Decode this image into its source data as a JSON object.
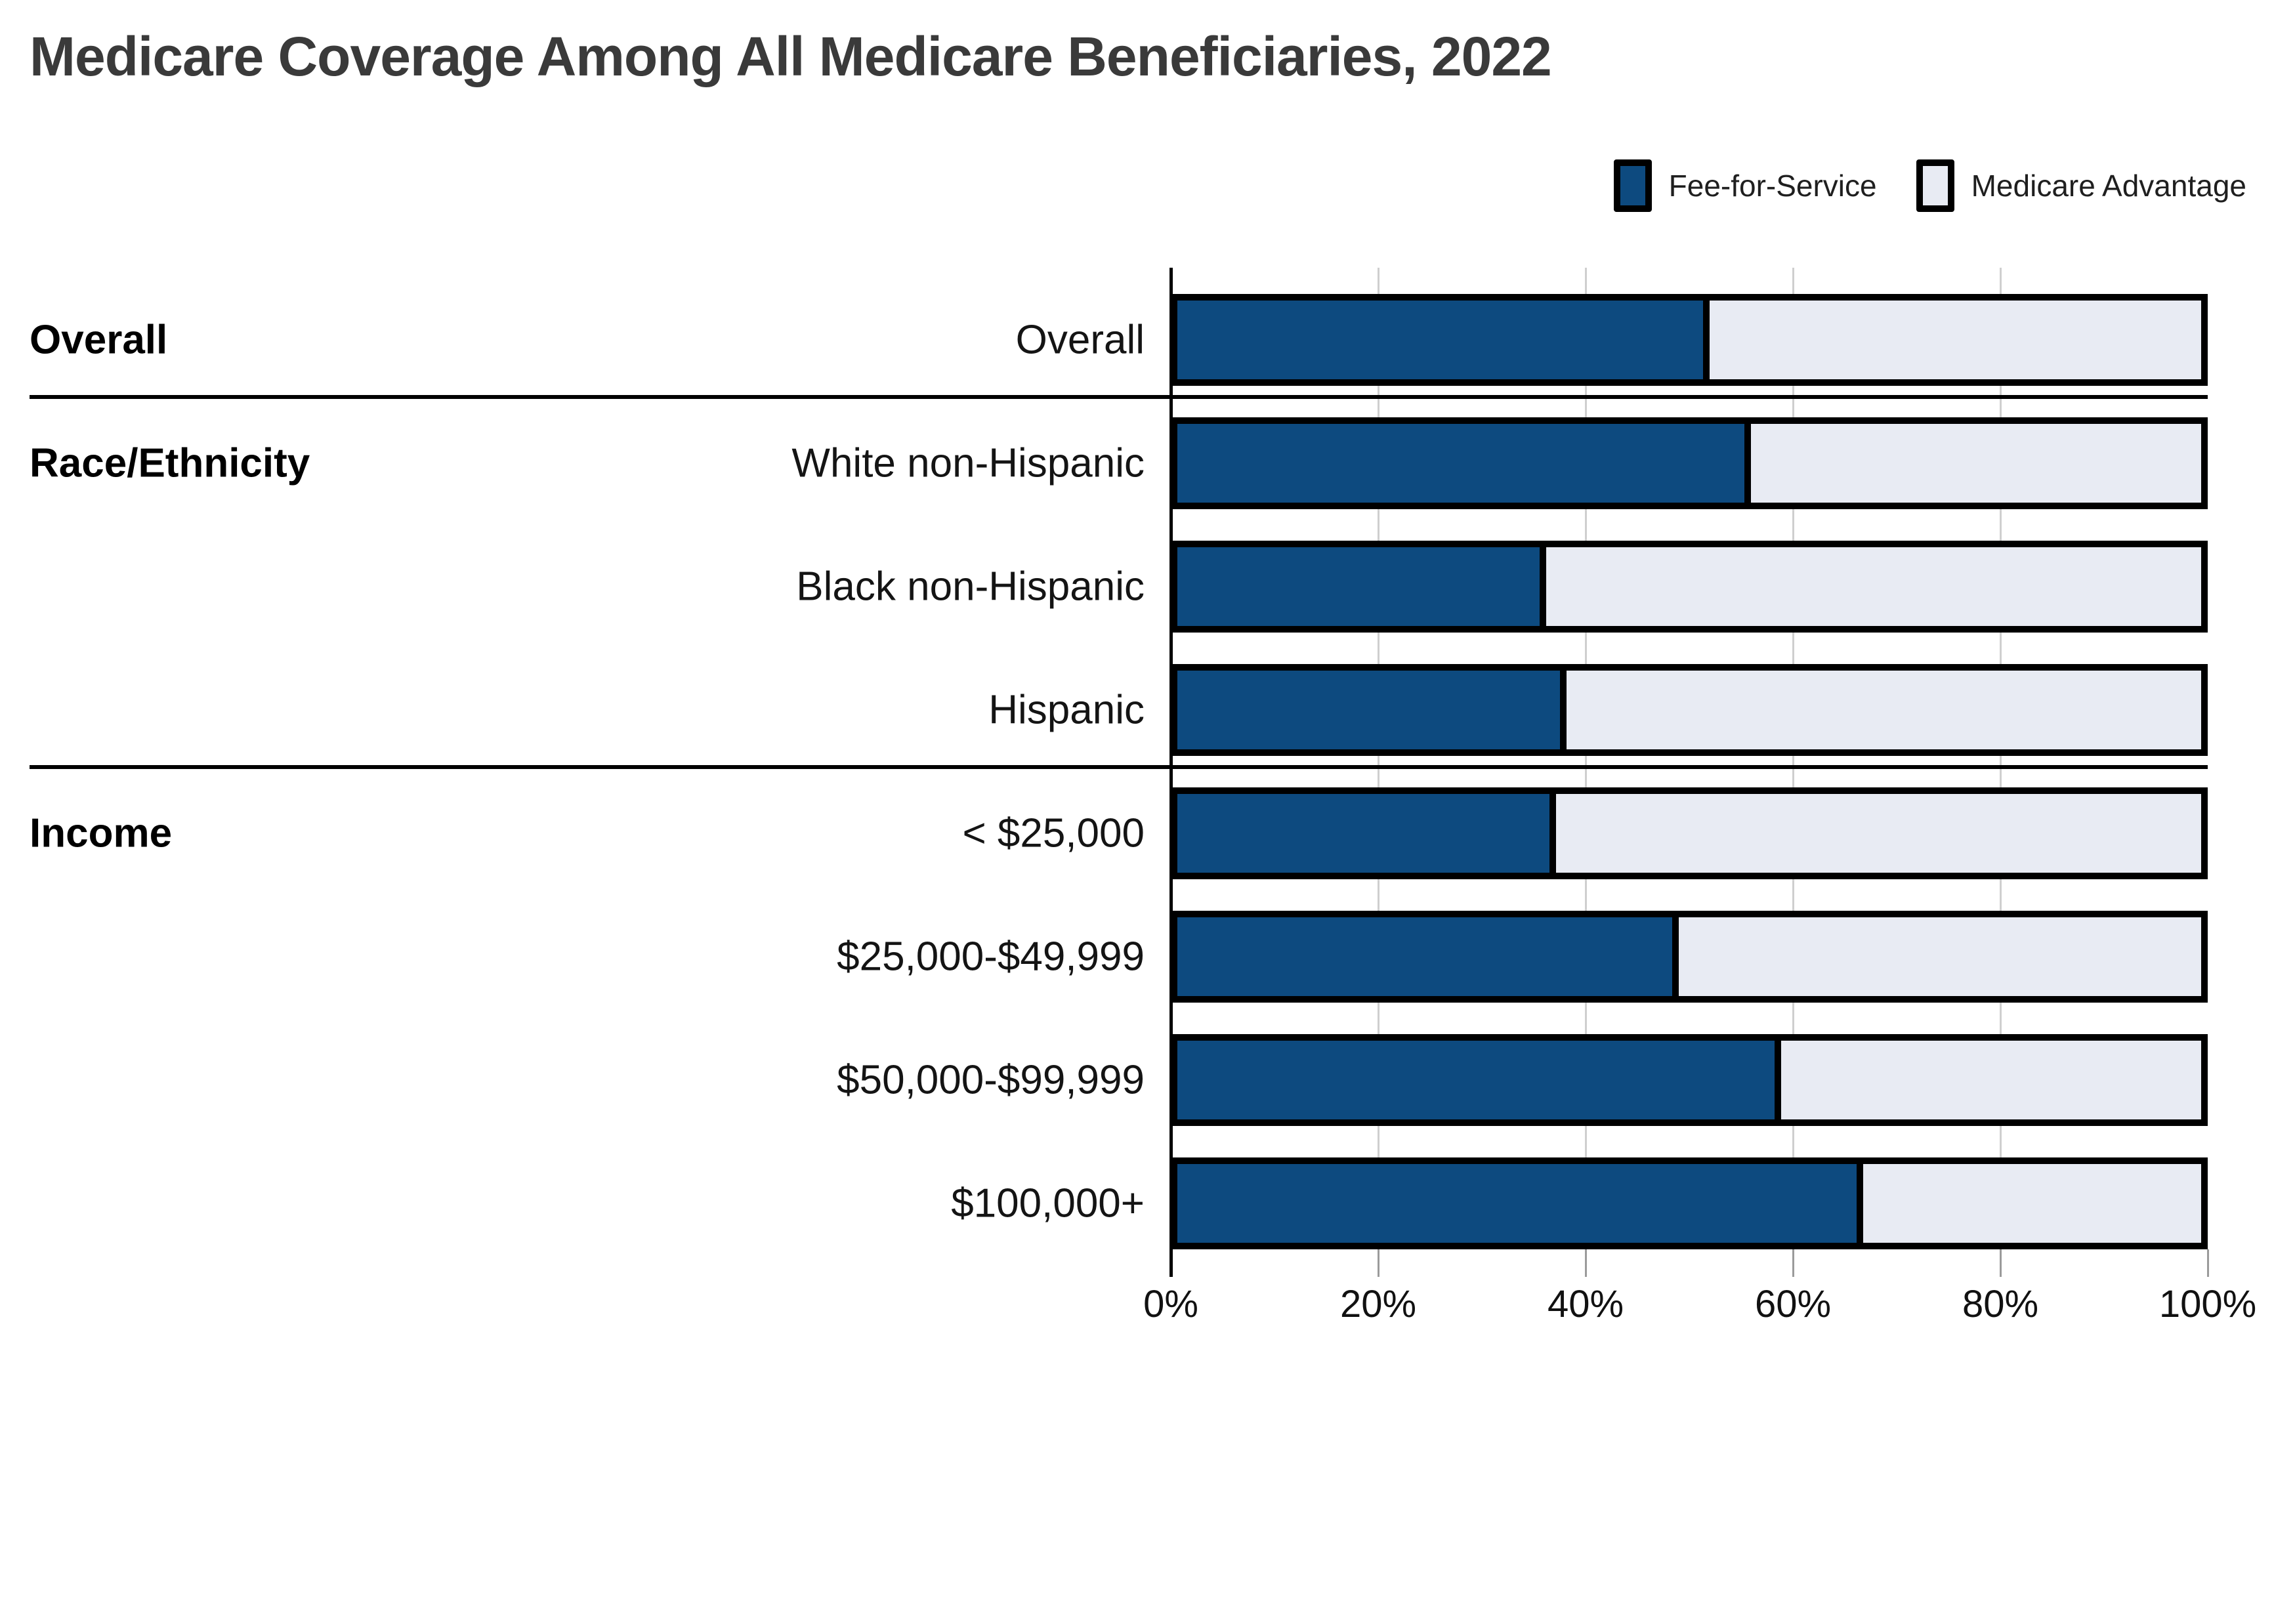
{
  "title": "Medicare Coverage Among All Medicare Beneficiaries, 2022",
  "legend": {
    "items": [
      {
        "label": "Fee-for-Service",
        "color": "#0d4a7f"
      },
      {
        "label": "Medicare Advantage",
        "color": "#e8ebf3"
      }
    ]
  },
  "colors": {
    "fee_for_service": "#0d4a7f",
    "medicare_advantage": "#e8ebf3",
    "bar_border": "#000000",
    "gridline": "#cfcfcf",
    "title_text": "#3a3a3a"
  },
  "chart_data": {
    "type": "bar",
    "orientation": "horizontal",
    "stacked": true,
    "title": "Medicare Coverage Among All Medicare Beneficiaries, 2022",
    "categories": [
      "Overall",
      "White non-Hispanic",
      "Black non-Hispanic",
      "Hispanic",
      "< $25,000",
      "$25,000-$49,999",
      "$50,000-$99,999",
      "$100,000+"
    ],
    "series": [
      {
        "name": "Fee-for-Service",
        "values": [
          52,
          56,
          36,
          38,
          37,
          49,
          59,
          67
        ]
      },
      {
        "name": "Medicare Advantage",
        "values": [
          48,
          44,
          64,
          62,
          63,
          51,
          41,
          33
        ]
      }
    ],
    "groups": [
      {
        "label": "Overall",
        "first_row": 0
      },
      {
        "label": "Race/Ethnicity",
        "first_row": 1
      },
      {
        "label": "Income",
        "first_row": 4
      }
    ],
    "separators_after_rows": [
      0,
      3
    ],
    "x_axis": {
      "range": [
        0,
        100
      ],
      "tick_values": [
        0,
        20,
        40,
        60,
        80,
        100
      ],
      "tick_labels": [
        "0%",
        "20%",
        "40%",
        "60%",
        "80%",
        "100%"
      ],
      "unit": "%"
    },
    "grid": true,
    "legend_position": "top-right",
    "value_unit": "percent of beneficiaries"
  }
}
